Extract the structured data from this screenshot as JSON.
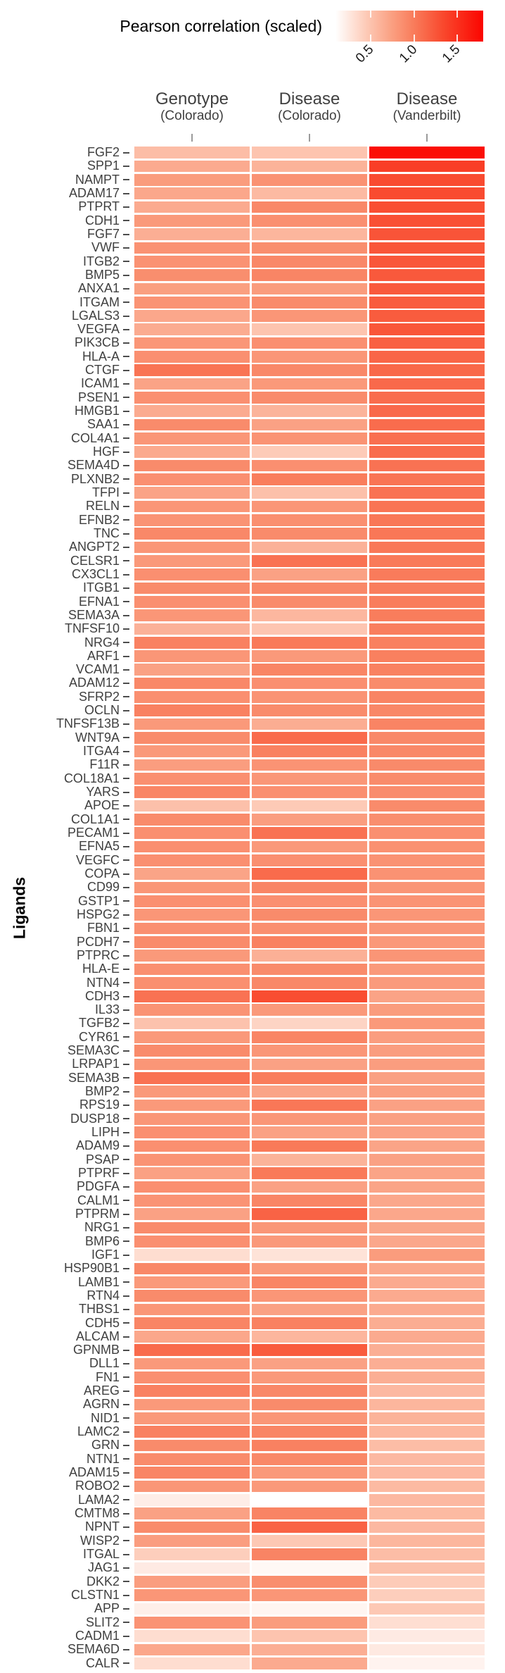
{
  "chart_data": {
    "type": "heatmap",
    "title": "Pearson correlation (scaled)",
    "ylabel": "Ligands",
    "columns": [
      {
        "label": "Genotype",
        "sublabel": "(Colorado)"
      },
      {
        "label": "Disease",
        "sublabel": "(Colorado)"
      },
      {
        "label": "Disease",
        "sublabel": "(Vanderbilt)"
      }
    ],
    "legend": {
      "title": "Pearson correlation (scaled)",
      "tick_labels": [
        "0.5",
        "1.0",
        "1.5"
      ],
      "tick_values": [
        0.5,
        1.0,
        1.5
      ],
      "domain": [
        0.1,
        1.81
      ],
      "low_color": "#FFFFFF",
      "high_color": "#FF0000"
    },
    "rows": [
      {
        "ligand": "FGF2",
        "values": [
          0.55,
          0.5,
          1.75
        ]
      },
      {
        "ligand": "SPP1",
        "values": [
          0.68,
          0.62,
          1.42
        ]
      },
      {
        "ligand": "NAMPT",
        "values": [
          0.78,
          0.85,
          1.33
        ]
      },
      {
        "ligand": "ADAM17",
        "values": [
          0.7,
          0.57,
          1.33
        ]
      },
      {
        "ligand": "PTPRT",
        "values": [
          0.68,
          0.92,
          1.31
        ]
      },
      {
        "ligand": "CDH1",
        "values": [
          0.8,
          0.87,
          1.3
        ]
      },
      {
        "ligand": "FGF7",
        "values": [
          0.65,
          0.6,
          1.27
        ]
      },
      {
        "ligand": "VWF",
        "values": [
          0.85,
          0.88,
          1.26
        ]
      },
      {
        "ligand": "ITGB2",
        "values": [
          0.85,
          0.92,
          1.25
        ]
      },
      {
        "ligand": "BMP5",
        "values": [
          0.88,
          0.94,
          1.24
        ]
      },
      {
        "ligand": "ANXA1",
        "values": [
          0.76,
          0.78,
          1.24
        ]
      },
      {
        "ligand": "ITGAM",
        "values": [
          0.84,
          0.9,
          1.22
        ]
      },
      {
        "ligand": "LGALS3",
        "values": [
          0.7,
          0.82,
          1.22
        ]
      },
      {
        "ligand": "VEGFA",
        "values": [
          0.67,
          0.5,
          1.26
        ]
      },
      {
        "ligand": "PIK3CB",
        "values": [
          0.82,
          0.87,
          1.19
        ]
      },
      {
        "ligand": "HLA-A",
        "values": [
          0.87,
          0.82,
          1.16
        ]
      },
      {
        "ligand": "CTGF",
        "values": [
          1.06,
          0.92,
          1.14
        ]
      },
      {
        "ligand": "ICAM1",
        "values": [
          0.73,
          0.8,
          1.13
        ]
      },
      {
        "ligand": "PSEN1",
        "values": [
          0.87,
          0.9,
          1.11
        ]
      },
      {
        "ligand": "HMGB1",
        "values": [
          0.67,
          0.61,
          1.13
        ]
      },
      {
        "ligand": "SAA1",
        "values": [
          0.9,
          0.74,
          1.11
        ]
      },
      {
        "ligand": "COL4A1",
        "values": [
          0.82,
          0.84,
          1.09
        ]
      },
      {
        "ligand": "HGF",
        "values": [
          0.69,
          0.45,
          1.11
        ]
      },
      {
        "ligand": "SEMA4D",
        "values": [
          0.9,
          0.87,
          1.07
        ]
      },
      {
        "ligand": "PLXNB2",
        "values": [
          0.87,
          1.0,
          1.06
        ]
      },
      {
        "ligand": "TFPI",
        "values": [
          0.73,
          0.53,
          1.07
        ]
      },
      {
        "ligand": "RELN",
        "values": [
          0.82,
          0.82,
          1.06
        ]
      },
      {
        "ligand": "EFNB2",
        "values": [
          0.84,
          0.87,
          1.04
        ]
      },
      {
        "ligand": "TNC",
        "values": [
          0.92,
          0.9,
          1.04
        ]
      },
      {
        "ligand": "ANGPT2",
        "values": [
          0.82,
          0.63,
          1.03
        ]
      },
      {
        "ligand": "CELSR1",
        "values": [
          0.8,
          1.07,
          1.02
        ]
      },
      {
        "ligand": "CX3CL1",
        "values": [
          0.87,
          0.74,
          1.01
        ]
      },
      {
        "ligand": "ITGB1",
        "values": [
          0.9,
          0.92,
          1.0
        ]
      },
      {
        "ligand": "EFNA1",
        "values": [
          0.87,
          0.9,
          1.0
        ]
      },
      {
        "ligand": "SEMA3A",
        "values": [
          0.82,
          0.59,
          1.0
        ]
      },
      {
        "ligand": "TNFSF10",
        "values": [
          0.63,
          0.49,
          0.99
        ]
      },
      {
        "ligand": "NRG4",
        "values": [
          0.97,
          1.02,
          0.98
        ]
      },
      {
        "ligand": "ARF1",
        "values": [
          0.82,
          0.8,
          0.98
        ]
      },
      {
        "ligand": "VCAM1",
        "values": [
          0.74,
          0.94,
          0.97
        ]
      },
      {
        "ligand": "ADAM12",
        "values": [
          0.92,
          0.87,
          0.9
        ]
      },
      {
        "ligand": "SFRP2",
        "values": [
          0.87,
          0.84,
          0.95
        ]
      },
      {
        "ligand": "OCLN",
        "values": [
          0.97,
          0.9,
          0.93
        ]
      },
      {
        "ligand": "TNFSF13B",
        "values": [
          0.8,
          0.66,
          0.95
        ]
      },
      {
        "ligand": "WNT9A",
        "values": [
          0.9,
          1.12,
          0.92
        ]
      },
      {
        "ligand": "ITGA4",
        "values": [
          0.8,
          0.97,
          0.92
        ]
      },
      {
        "ligand": "F11R",
        "values": [
          0.77,
          0.84,
          0.91
        ]
      },
      {
        "ligand": "COL18A1",
        "values": [
          0.87,
          0.82,
          0.9
        ]
      },
      {
        "ligand": "YARS",
        "values": [
          0.94,
          0.87,
          0.89
        ]
      },
      {
        "ligand": "APOE",
        "values": [
          0.53,
          0.46,
          0.9
        ]
      },
      {
        "ligand": "COL1A1",
        "values": [
          0.9,
          0.77,
          0.88
        ]
      },
      {
        "ligand": "PECAM1",
        "values": [
          0.87,
          1.07,
          0.87
        ]
      },
      {
        "ligand": "EFNA5",
        "values": [
          0.87,
          0.8,
          0.86
        ]
      },
      {
        "ligand": "VEGFC",
        "values": [
          0.87,
          0.87,
          0.85
        ]
      },
      {
        "ligand": "COPA",
        "values": [
          0.72,
          1.12,
          0.85
        ]
      },
      {
        "ligand": "CD99",
        "values": [
          0.82,
          0.94,
          0.83
        ]
      },
      {
        "ligand": "GSTP1",
        "values": [
          0.87,
          0.87,
          0.84
        ]
      },
      {
        "ligand": "HSPG2",
        "values": [
          0.82,
          0.9,
          0.82
        ]
      },
      {
        "ligand": "FBN1",
        "values": [
          0.87,
          0.87,
          0.82
        ]
      },
      {
        "ligand": "PCDH7",
        "values": [
          0.9,
          0.97,
          0.81
        ]
      },
      {
        "ligand": "PTPRC",
        "values": [
          0.8,
          0.64,
          0.83
        ]
      },
      {
        "ligand": "HLA-E",
        "values": [
          0.87,
          0.9,
          0.8
        ]
      },
      {
        "ligand": "NTN4",
        "values": [
          0.87,
          0.92,
          0.79
        ]
      },
      {
        "ligand": "CDH3",
        "values": [
          1.07,
          1.32,
          0.73
        ]
      },
      {
        "ligand": "IL33",
        "values": [
          0.84,
          0.8,
          0.78
        ]
      },
      {
        "ligand": "TGFB2",
        "values": [
          0.51,
          0.39,
          0.8
        ]
      },
      {
        "ligand": "CYR61",
        "values": [
          0.8,
          0.94,
          0.77
        ]
      },
      {
        "ligand": "SEMA3C",
        "values": [
          0.9,
          0.82,
          0.77
        ]
      },
      {
        "ligand": "LRPAP1",
        "values": [
          0.82,
          0.74,
          0.77
        ]
      },
      {
        "ligand": "SEMA3B",
        "values": [
          1.07,
          1.0,
          0.75
        ]
      },
      {
        "ligand": "BMP2",
        "values": [
          0.8,
          0.72,
          0.76
        ]
      },
      {
        "ligand": "RPS19",
        "values": [
          0.8,
          1.04,
          0.74
        ]
      },
      {
        "ligand": "DUSP18",
        "values": [
          0.82,
          0.82,
          0.75
        ]
      },
      {
        "ligand": "LIPH",
        "values": [
          0.87,
          0.74,
          0.74
        ]
      },
      {
        "ligand": "ADAM9",
        "values": [
          0.87,
          1.02,
          0.72
        ]
      },
      {
        "ligand": "PSAP",
        "values": [
          0.84,
          0.62,
          0.74
        ]
      },
      {
        "ligand": "PTPRF",
        "values": [
          0.74,
          1.02,
          0.72
        ]
      },
      {
        "ligand": "PDGFA",
        "values": [
          0.87,
          0.74,
          0.72
        ]
      },
      {
        "ligand": "CALM1",
        "values": [
          0.84,
          0.94,
          0.7
        ]
      },
      {
        "ligand": "PTPRM",
        "values": [
          0.74,
          1.17,
          0.7
        ]
      },
      {
        "ligand": "NRG1",
        "values": [
          0.9,
          0.82,
          0.71
        ]
      },
      {
        "ligand": "BMP6",
        "values": [
          0.87,
          0.8,
          0.7
        ]
      },
      {
        "ligand": "IGF1",
        "values": [
          0.33,
          0.29,
          0.78
        ]
      },
      {
        "ligand": "HSP90B1",
        "values": [
          0.92,
          0.8,
          0.7
        ]
      },
      {
        "ligand": "LAMB1",
        "values": [
          0.8,
          0.94,
          0.68
        ]
      },
      {
        "ligand": "RTN4",
        "values": [
          0.9,
          0.82,
          0.68
        ]
      },
      {
        "ligand": "THBS1",
        "values": [
          0.82,
          0.74,
          0.68
        ]
      },
      {
        "ligand": "CDH5",
        "values": [
          0.94,
          0.97,
          0.66
        ]
      },
      {
        "ligand": "ALCAM",
        "values": [
          0.7,
          0.6,
          0.68
        ]
      },
      {
        "ligand": "GPNMB",
        "values": [
          1.12,
          1.22,
          0.65
        ]
      },
      {
        "ligand": "DLL1",
        "values": [
          0.8,
          0.74,
          0.65
        ]
      },
      {
        "ligand": "FN1",
        "values": [
          0.87,
          0.8,
          0.65
        ]
      },
      {
        "ligand": "AREG",
        "values": [
          0.97,
          0.92,
          0.58
        ]
      },
      {
        "ligand": "AGRN",
        "values": [
          0.8,
          0.9,
          0.6
        ]
      },
      {
        "ligand": "NID1",
        "values": [
          0.8,
          0.82,
          0.62
        ]
      },
      {
        "ligand": "LAMC2",
        "values": [
          0.97,
          0.94,
          0.6
        ]
      },
      {
        "ligand": "GRN",
        "values": [
          0.9,
          0.97,
          0.55
        ]
      },
      {
        "ligand": "NTN1",
        "values": [
          0.9,
          0.92,
          0.58
        ]
      },
      {
        "ligand": "ADAM15",
        "values": [
          0.94,
          0.8,
          0.58
        ]
      },
      {
        "ligand": "ROBO2",
        "values": [
          0.82,
          0.8,
          0.57
        ]
      },
      {
        "ligand": "LAMA2",
        "values": [
          0.22,
          0.1,
          0.58
        ]
      },
      {
        "ligand": "CMTM8",
        "values": [
          0.74,
          0.95,
          0.57
        ]
      },
      {
        "ligand": "NPNT",
        "values": [
          0.9,
          1.17,
          0.58
        ]
      },
      {
        "ligand": "WISP2",
        "values": [
          0.77,
          0.47,
          0.6
        ]
      },
      {
        "ligand": "ITGAL",
        "values": [
          0.43,
          0.95,
          0.55
        ]
      },
      {
        "ligand": "JAG1",
        "values": [
          0.24,
          0.15,
          0.53
        ]
      },
      {
        "ligand": "DKK2",
        "values": [
          0.77,
          0.88,
          0.45
        ]
      },
      {
        "ligand": "CLSTN1",
        "values": [
          0.82,
          0.82,
          0.43
        ]
      },
      {
        "ligand": "APP",
        "values": [
          0.21,
          0.17,
          0.47
        ]
      },
      {
        "ligand": "SLIT2",
        "values": [
          0.84,
          0.78,
          0.32
        ]
      },
      {
        "ligand": "CADM1",
        "values": [
          0.33,
          0.5,
          0.24
        ]
      },
      {
        "ligand": "SEMA6D",
        "values": [
          0.7,
          0.65,
          0.25
        ]
      },
      {
        "ligand": "CALR",
        "values": [
          0.33,
          0.68,
          0.18
        ]
      }
    ]
  }
}
